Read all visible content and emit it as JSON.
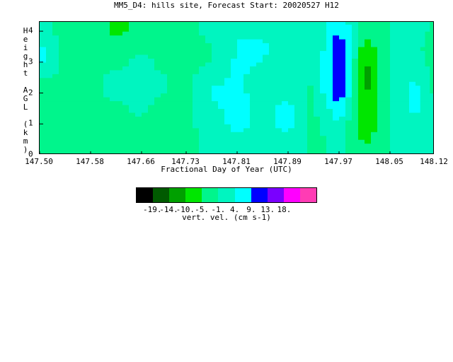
{
  "chart_data": {
    "type": "heatmap",
    "title": "MM5_D4: hills site,  Forecast Start: 20020527 H12",
    "xlabel": "Fractional Day of Year (UTC)",
    "ylabel": "Height AGL (km)",
    "x_ticks": [
      "147.50",
      "147.58",
      "147.66",
      "147.73",
      "147.81",
      "147.89",
      "147.97",
      "148.05",
      "148.12"
    ],
    "y_ticks": [
      "0",
      "1",
      "2",
      "3",
      "4"
    ],
    "xlim": [
      147.5,
      148.12
    ],
    "ylim": [
      0,
      4.3
    ],
    "colorbar": {
      "label": "vert. vel. (cm s-1)",
      "tick_labels": [
        "-19.",
        "-14.",
        "-10.",
        "-5.",
        "-1.",
        "4.",
        "9.",
        "13.",
        "18."
      ],
      "colors": [
        "#000000",
        "#005a00",
        "#00a000",
        "#00e600",
        "#00f58c",
        "#00f5c0",
        "#00ffff",
        "#0000ff",
        "#7a00ff",
        "#ff00ff",
        "#ff3cb4"
      ]
    },
    "x": [
      147.5,
      147.54,
      147.58,
      147.62,
      147.66,
      147.7,
      147.73,
      147.77,
      147.81,
      147.85,
      147.89,
      147.93,
      147.97,
      148.01,
      148.05,
      148.09,
      148.12
    ],
    "y": [
      0,
      0.5,
      1.0,
      1.5,
      2.0,
      2.5,
      3.0,
      3.5,
      4.0,
      4.3
    ],
    "z": [
      [
        -2,
        -3,
        -2,
        -1,
        -2,
        -3,
        -2,
        0,
        0,
        0,
        1,
        -2,
        0,
        -3,
        -1,
        -1,
        0
      ],
      [
        -2,
        -3,
        -4,
        -2,
        -2,
        -3,
        -2,
        0,
        2,
        1,
        2,
        -2,
        0,
        -6,
        -1,
        -1,
        0
      ],
      [
        -2,
        -4,
        -4,
        -2,
        -2,
        -3,
        -2,
        1,
        6,
        2,
        6,
        -2,
        3,
        -9,
        -1,
        3,
        0
      ],
      [
        -2,
        -3,
        -3,
        -2,
        0,
        -3,
        -2,
        2,
        7,
        2,
        6,
        -2,
        8,
        -10,
        -1,
        5,
        -1
      ],
      [
        -1,
        -2,
        -2,
        0,
        0,
        -1,
        -2,
        5,
        5,
        2,
        2,
        -2,
        14,
        -11,
        -1,
        6,
        -2
      ],
      [
        -1,
        -2,
        -2,
        0,
        0,
        -1,
        -2,
        2,
        5,
        2,
        2,
        -1,
        15,
        -13,
        0,
        4,
        -2
      ],
      [
        5,
        -2,
        -3,
        -2,
        0,
        -2,
        -3,
        -1,
        5,
        4,
        0,
        -1,
        14,
        -11,
        0,
        1,
        -3
      ],
      [
        5,
        -2,
        -3,
        -3,
        -2,
        -3,
        -3,
        -1,
        4,
        5,
        0,
        -1,
        12,
        -7,
        -1,
        0,
        -3
      ],
      [
        0,
        -2,
        -3,
        -6,
        -4,
        -3,
        -2,
        0,
        4,
        3,
        0,
        -1,
        10,
        -4,
        -1,
        1,
        -2
      ],
      [
        0,
        -2,
        -3,
        -6,
        -4,
        -3,
        -2,
        0,
        4,
        3,
        0,
        -1,
        8,
        -3,
        -1,
        1,
        -2
      ]
    ]
  }
}
